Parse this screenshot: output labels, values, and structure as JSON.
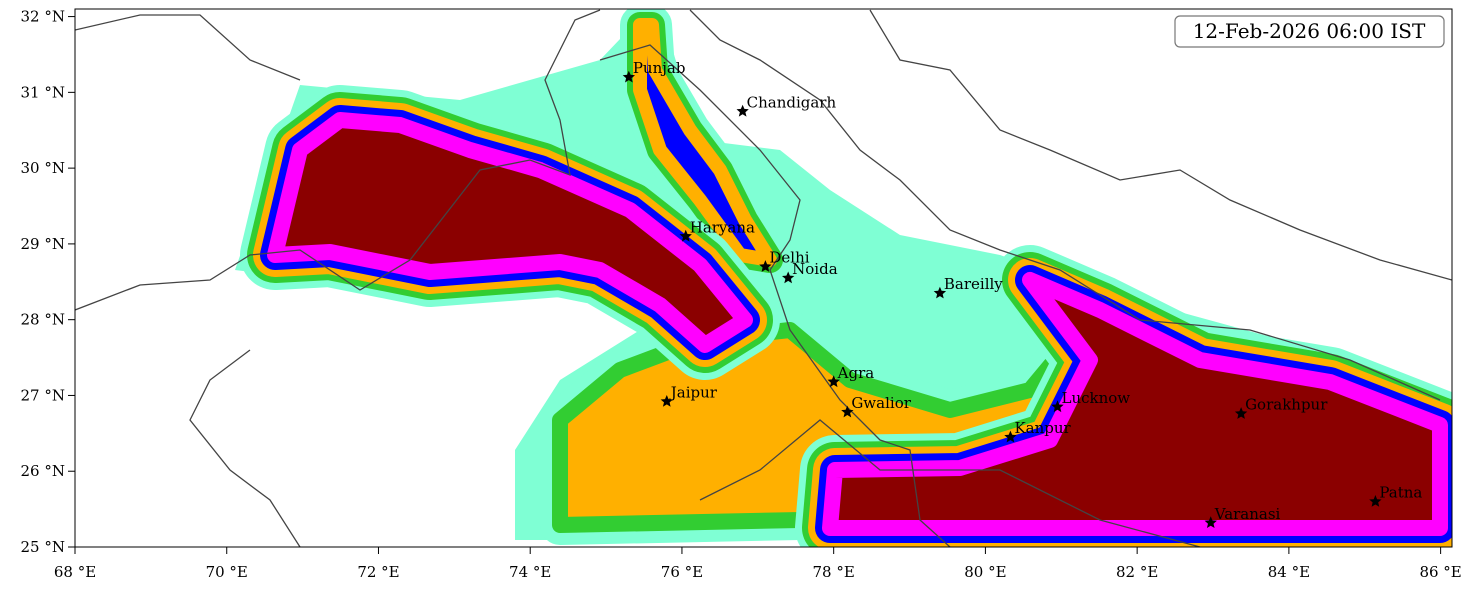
{
  "title": "12-Feb-2026 06:00 IST",
  "map": {
    "xlim": [
      68,
      86.15
    ],
    "ylim": [
      25,
      32.1
    ],
    "xticks": [
      {
        "value": 68,
        "label": "68 °E"
      },
      {
        "value": 70,
        "label": "70 °E"
      },
      {
        "value": 72,
        "label": "72 °E"
      },
      {
        "value": 74,
        "label": "74 °E"
      },
      {
        "value": 76,
        "label": "76 °E"
      },
      {
        "value": 78,
        "label": "78 °E"
      },
      {
        "value": 80,
        "label": "80 °E"
      },
      {
        "value": 82,
        "label": "82 °E"
      },
      {
        "value": 84,
        "label": "84 °E"
      },
      {
        "value": 86,
        "label": "86 °E"
      }
    ],
    "yticks": [
      {
        "value": 25,
        "label": "25 °N"
      },
      {
        "value": 26,
        "label": "26 °N"
      },
      {
        "value": 27,
        "label": "27 °N"
      },
      {
        "value": 28,
        "label": "28 °N"
      },
      {
        "value": 29,
        "label": "29 °N"
      },
      {
        "value": 30,
        "label": "30 °N"
      },
      {
        "value": 31,
        "label": "31 °N"
      },
      {
        "value": 32,
        "label": "32 °N"
      }
    ],
    "cities": [
      {
        "name": "Punjab",
        "lon": 75.3,
        "lat": 31.2
      },
      {
        "name": "Chandigarh",
        "lon": 76.8,
        "lat": 30.75
      },
      {
        "name": "Haryana",
        "lon": 76.05,
        "lat": 29.1
      },
      {
        "name": "Delhi",
        "lon": 77.1,
        "lat": 28.7
      },
      {
        "name": "Noida",
        "lon": 77.4,
        "lat": 28.55
      },
      {
        "name": "Bareilly",
        "lon": 79.4,
        "lat": 28.35
      },
      {
        "name": "Agra",
        "lon": 78.0,
        "lat": 27.18
      },
      {
        "name": "Jaipur",
        "lon": 75.8,
        "lat": 26.92
      },
      {
        "name": "Gwalior",
        "lon": 78.18,
        "lat": 26.78
      },
      {
        "name": "Lucknow",
        "lon": 80.95,
        "lat": 26.85
      },
      {
        "name": "Kanpur",
        "lon": 80.33,
        "lat": 26.45
      },
      {
        "name": "Gorakhpur",
        "lon": 83.37,
        "lat": 26.76
      },
      {
        "name": "Varanasi",
        "lon": 82.97,
        "lat": 25.32
      },
      {
        "name": "Patna",
        "lon": 85.14,
        "lat": 25.6
      }
    ]
  }
}
